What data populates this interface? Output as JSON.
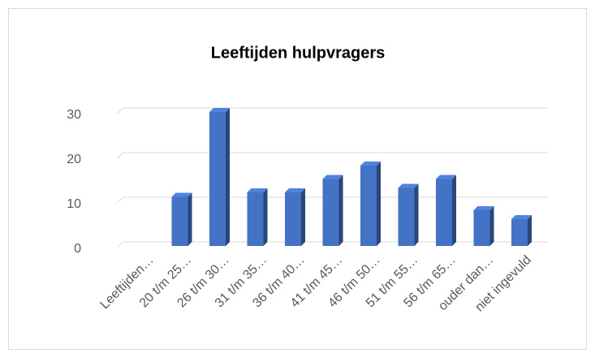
{
  "chart_data": {
    "type": "bar3d",
    "title": "Leeftijden hulpvragers",
    "categories": [
      "Leeftijden…",
      "20 t/m 25…",
      "26 t/m 30…",
      "31 t/m 35…",
      "36 t/m 40…",
      "41 t/m 45…",
      "46 t/m 50…",
      "51 t/m 55…",
      "56 t/m 65…",
      "ouder dan…",
      "niet ingevuld"
    ],
    "values": [
      null,
      11,
      30,
      12,
      12,
      15,
      18,
      13,
      15,
      8,
      6
    ],
    "color": "#4472c4",
    "ylim": [
      0,
      30
    ],
    "yticks": [
      0,
      10,
      20,
      30
    ],
    "grid": true
  }
}
